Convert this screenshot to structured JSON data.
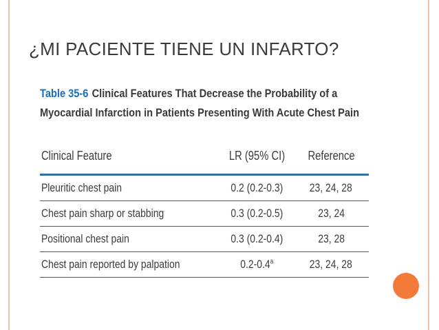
{
  "slide": {
    "title": "¿MI PACIENTE TIENE UN INFARTO?",
    "accent_color": "#f47a3a",
    "frame_color": "#f2c2a8"
  },
  "table": {
    "caption_prefix": "Table 35-6",
    "caption_line1": "Clinical Features That Decrease the Probability of a",
    "caption_line2": "Myocardial Infarction in Patients Presenting With Acute Chest Pain",
    "headers": [
      "Clinical Feature",
      "LR (95% CI)",
      "Reference"
    ],
    "rows": [
      {
        "feature": "Pleuritic chest pain",
        "lr": "0.2 (0.2-0.3)",
        "lr_sup": "",
        "ref": "23, 24, 28"
      },
      {
        "feature": "Chest pain sharp or stabbing",
        "lr": "0.3 (0.2-0.5)",
        "lr_sup": "",
        "ref": "23, 24"
      },
      {
        "feature": "Positional chest pain",
        "lr": "0.3 (0.2-0.4)",
        "lr_sup": "",
        "ref": "23, 28"
      },
      {
        "feature": "Chest pain reported by palpation",
        "lr": "0.2-0.4",
        "lr_sup": "a",
        "ref": "23, 24, 28"
      }
    ],
    "header_rule_color": "#2f6fae",
    "prefix_color": "#1b6fb3"
  }
}
